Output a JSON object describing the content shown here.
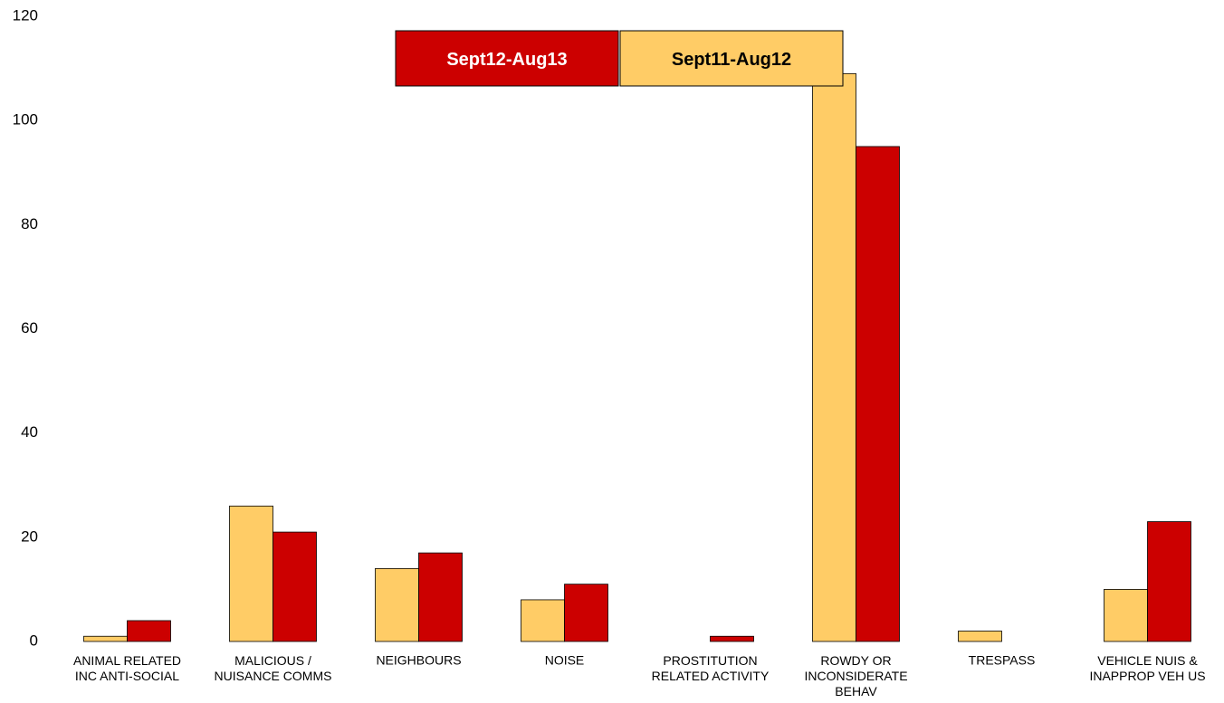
{
  "chart_data": {
    "type": "bar",
    "categories": [
      "ANIMAL RELATED\nINC ANTI-SOCIAL",
      "MALICIOUS /\nNUISANCE COMMS",
      "NEIGHBOURS",
      "NOISE",
      "PROSTITUTION\nRELATED ACTIVITY",
      "ROWDY OR\nINCONSIDERATE\nBEHAV",
      "TRESPASS",
      "VEHICLE NUIS &\nINAPPROP VEH US"
    ],
    "series": [
      {
        "name": "Sept11-Aug12",
        "color": "#FFCC66",
        "values": [
          1,
          26,
          14,
          8,
          0,
          109,
          2,
          10
        ]
      },
      {
        "name": "Sept12-Aug13",
        "color": "#CC0000",
        "values": [
          4,
          21,
          17,
          11,
          1,
          95,
          0,
          23
        ]
      }
    ],
    "ylim": [
      0,
      120
    ],
    "yticks": [
      0,
      20,
      40,
      60,
      80,
      100,
      120
    ],
    "grid": false,
    "legend": "top"
  }
}
